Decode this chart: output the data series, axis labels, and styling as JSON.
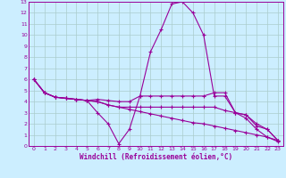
{
  "xlabel": "Windchill (Refroidissement éolien,°C)",
  "bg_color": "#cceeff",
  "grid_color": "#aacccc",
  "line_color": "#990099",
  "xlim": [
    -0.5,
    23.5
  ],
  "ylim": [
    0,
    13
  ],
  "xticks": [
    0,
    1,
    2,
    3,
    4,
    5,
    6,
    7,
    8,
    9,
    10,
    11,
    12,
    13,
    14,
    15,
    16,
    17,
    18,
    19,
    20,
    21,
    22,
    23
  ],
  "yticks": [
    0,
    1,
    2,
    3,
    4,
    5,
    6,
    7,
    8,
    9,
    10,
    11,
    12,
    13
  ],
  "x_values": [
    0,
    1,
    2,
    3,
    4,
    5,
    6,
    7,
    8,
    9,
    10,
    11,
    12,
    13,
    14,
    15,
    16,
    17,
    18,
    19,
    20,
    21,
    22,
    23
  ],
  "series": [
    [
      6.0,
      4.8,
      4.4,
      4.3,
      4.2,
      4.1,
      3.0,
      2.0,
      0.2,
      1.5,
      4.5,
      8.5,
      10.5,
      12.8,
      13.0,
      12.0,
      10.0,
      4.5,
      4.5,
      3.0,
      2.5,
      1.5,
      0.8,
      0.5
    ],
    [
      6.0,
      4.8,
      4.4,
      4.3,
      4.2,
      4.1,
      4.2,
      4.1,
      4.0,
      4.0,
      4.5,
      4.5,
      4.5,
      4.5,
      4.5,
      4.5,
      4.5,
      4.8,
      4.8,
      3.0,
      2.8,
      1.8,
      1.5,
      0.5
    ],
    [
      6.0,
      4.8,
      4.4,
      4.3,
      4.2,
      4.1,
      4.0,
      3.7,
      3.5,
      3.5,
      3.5,
      3.5,
      3.5,
      3.5,
      3.5,
      3.5,
      3.5,
      3.5,
      3.2,
      3.0,
      2.8,
      2.0,
      1.5,
      0.5
    ],
    [
      6.0,
      4.8,
      4.4,
      4.3,
      4.2,
      4.1,
      4.0,
      3.7,
      3.5,
      3.3,
      3.1,
      2.9,
      2.7,
      2.5,
      2.3,
      2.1,
      2.0,
      1.8,
      1.6,
      1.4,
      1.2,
      1.0,
      0.8,
      0.4
    ]
  ]
}
